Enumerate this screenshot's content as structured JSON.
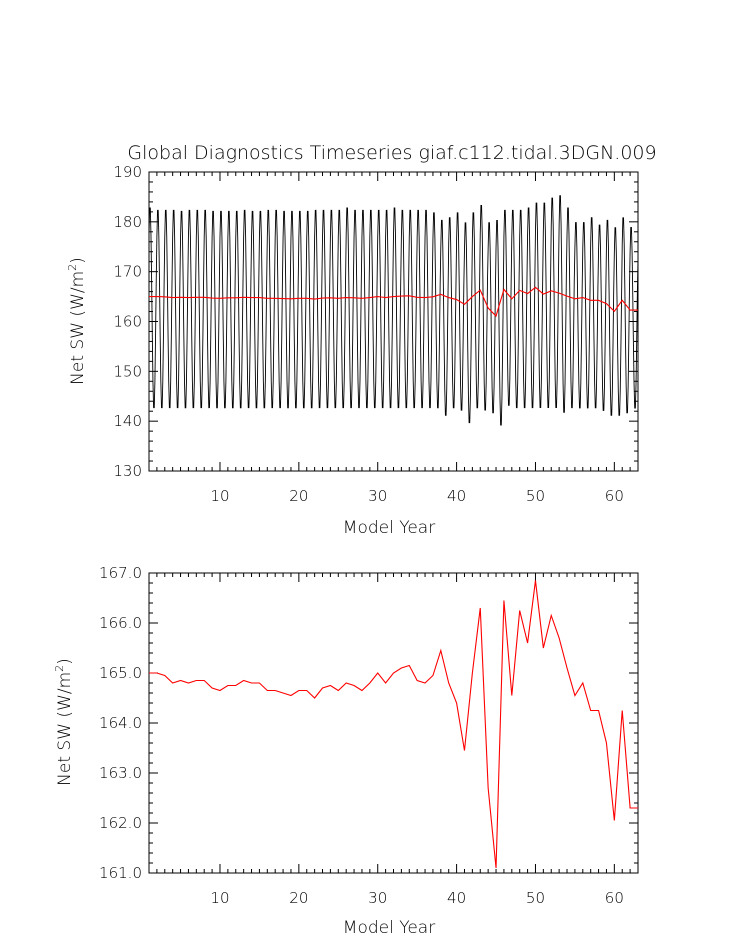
{
  "figure": {
    "title": "Global Diagnostics Timeseries giaf.c112.tidal.3DGN.009"
  },
  "chart_data": [
    {
      "type": "line",
      "xlabel": "Model Year",
      "ylabel": "Net SW (W/m²)",
      "ylabel_main": "Net SW (W/m",
      "ylabel_sup": "2",
      "ylabel_close": ")",
      "xlim": [
        1,
        63
      ],
      "ylim": [
        130,
        190
      ],
      "xticks": [
        10,
        20,
        30,
        40,
        50,
        60
      ],
      "xtick_labels": [
        "10",
        "20",
        "30",
        "40",
        "50",
        "60"
      ],
      "yticks": [
        130,
        140,
        150,
        160,
        170,
        180,
        190
      ],
      "ytick_labels": [
        "130",
        "140",
        "150",
        "160",
        "170",
        "180",
        "190"
      ],
      "grid": false,
      "series": [
        {
          "color": "#000000",
          "description": "monthly values, seasonal cycle",
          "x_start": 1.0,
          "x_step": 0.0833333,
          "annual_max": [
            183.5,
            183.0,
            183.0,
            183.0,
            182.8,
            183.0,
            183.0,
            183.0,
            182.8,
            182.8,
            182.8,
            182.8,
            183.0,
            182.8,
            182.8,
            183.0,
            183.0,
            182.8,
            182.8,
            182.8,
            182.8,
            183.0,
            183.0,
            183.0,
            183.0,
            183.5,
            183.0,
            183.0,
            183.0,
            183.0,
            183.0,
            183.5,
            183.0,
            183.0,
            183.0,
            183.0,
            182.5,
            181.0,
            181.5,
            182.5,
            180.5,
            182.5,
            184.0,
            180.5,
            181.0,
            183.0,
            183.0,
            183.0,
            183.5,
            184.5,
            184.5,
            185.5,
            186.0,
            183.5,
            180.5,
            180.5,
            181.5,
            180.0,
            181.0,
            179.5,
            181.5,
            179.5,
            178.0
          ],
          "annual_min": [
            142.0,
            142.0,
            142.0,
            142.0,
            142.0,
            142.0,
            142.0,
            142.0,
            142.0,
            142.0,
            142.0,
            142.0,
            142.0,
            142.0,
            142.0,
            142.0,
            142.0,
            142.0,
            142.0,
            142.0,
            142.0,
            142.0,
            142.0,
            142.0,
            142.0,
            142.0,
            142.0,
            142.0,
            142.0,
            142.0,
            142.0,
            142.0,
            142.0,
            142.0,
            142.0,
            142.0,
            142.0,
            140.5,
            142.0,
            141.5,
            139.0,
            142.0,
            141.5,
            141.0,
            138.5,
            142.5,
            142.0,
            142.0,
            142.0,
            142.0,
            142.0,
            142.0,
            141.0,
            142.0,
            142.0,
            142.0,
            142.0,
            141.5,
            140.5,
            140.5,
            141.0,
            142.0,
            142.0
          ]
        },
        {
          "color": "#ff0000",
          "description": "annual mean",
          "x": [
            1,
            2,
            3,
            4,
            5,
            6,
            7,
            8,
            9,
            10,
            11,
            12,
            13,
            14,
            15,
            16,
            17,
            18,
            19,
            20,
            21,
            22,
            23,
            24,
            25,
            26,
            27,
            28,
            29,
            30,
            31,
            32,
            33,
            34,
            35,
            36,
            37,
            38,
            39,
            40,
            41,
            42,
            43,
            44,
            45,
            46,
            47,
            48,
            49,
            50,
            51,
            52,
            53,
            54,
            55,
            56,
            57,
            58,
            59,
            60,
            61,
            62,
            63
          ],
          "values": [
            165.0,
            165.0,
            164.95,
            164.8,
            164.85,
            164.8,
            164.85,
            164.85,
            164.7,
            164.65,
            164.75,
            164.75,
            164.85,
            164.8,
            164.8,
            164.65,
            164.65,
            164.6,
            164.55,
            164.65,
            164.65,
            164.5,
            164.7,
            164.75,
            164.65,
            164.8,
            164.75,
            164.65,
            164.8,
            165.0,
            164.8,
            165.0,
            165.1,
            165.15,
            164.85,
            164.8,
            164.95,
            165.45,
            164.8,
            164.4,
            163.45,
            165.0,
            166.3,
            162.7,
            161.1,
            166.45,
            164.55,
            166.25,
            165.6,
            166.85,
            165.5,
            166.15,
            165.7,
            165.1,
            164.55,
            164.8,
            164.25,
            164.25,
            163.6,
            162.05,
            164.25,
            162.3,
            162.3
          ]
        }
      ]
    },
    {
      "type": "line",
      "xlabel": "Model Year",
      "ylabel": "Net SW (W/m²)",
      "ylabel_main": "Net SW (W/m",
      "ylabel_sup": "2",
      "ylabel_close": ")",
      "xlim": [
        1,
        63
      ],
      "ylim": [
        161.0,
        167.0
      ],
      "xticks": [
        10,
        20,
        30,
        40,
        50,
        60
      ],
      "xtick_labels": [
        "10",
        "20",
        "30",
        "40",
        "50",
        "60"
      ],
      "yticks": [
        161,
        162,
        163,
        164,
        165,
        166,
        167
      ],
      "ytick_labels": [
        "161.0",
        "162.0",
        "163.0",
        "164.0",
        "165.0",
        "166.0",
        "167.0"
      ],
      "grid": false,
      "series": [
        {
          "color": "#ff0000",
          "description": "annual mean",
          "x": [
            1,
            2,
            3,
            4,
            5,
            6,
            7,
            8,
            9,
            10,
            11,
            12,
            13,
            14,
            15,
            16,
            17,
            18,
            19,
            20,
            21,
            22,
            23,
            24,
            25,
            26,
            27,
            28,
            29,
            30,
            31,
            32,
            33,
            34,
            35,
            36,
            37,
            38,
            39,
            40,
            41,
            42,
            43,
            44,
            45,
            46,
            47,
            48,
            49,
            50,
            51,
            52,
            53,
            54,
            55,
            56,
            57,
            58,
            59,
            60,
            61,
            62,
            63
          ],
          "values": [
            165.0,
            165.0,
            164.95,
            164.8,
            164.85,
            164.8,
            164.85,
            164.85,
            164.7,
            164.65,
            164.75,
            164.75,
            164.85,
            164.8,
            164.8,
            164.65,
            164.65,
            164.6,
            164.55,
            164.65,
            164.65,
            164.5,
            164.7,
            164.75,
            164.65,
            164.8,
            164.75,
            164.65,
            164.8,
            165.0,
            164.8,
            165.0,
            165.1,
            165.15,
            164.85,
            164.8,
            164.95,
            165.45,
            164.8,
            164.4,
            163.45,
            165.0,
            166.3,
            162.7,
            161.1,
            166.45,
            164.55,
            166.25,
            165.6,
            166.85,
            165.5,
            166.15,
            165.7,
            165.1,
            164.55,
            164.8,
            164.25,
            164.25,
            163.6,
            162.05,
            164.25,
            162.3,
            162.3
          ]
        }
      ]
    }
  ]
}
